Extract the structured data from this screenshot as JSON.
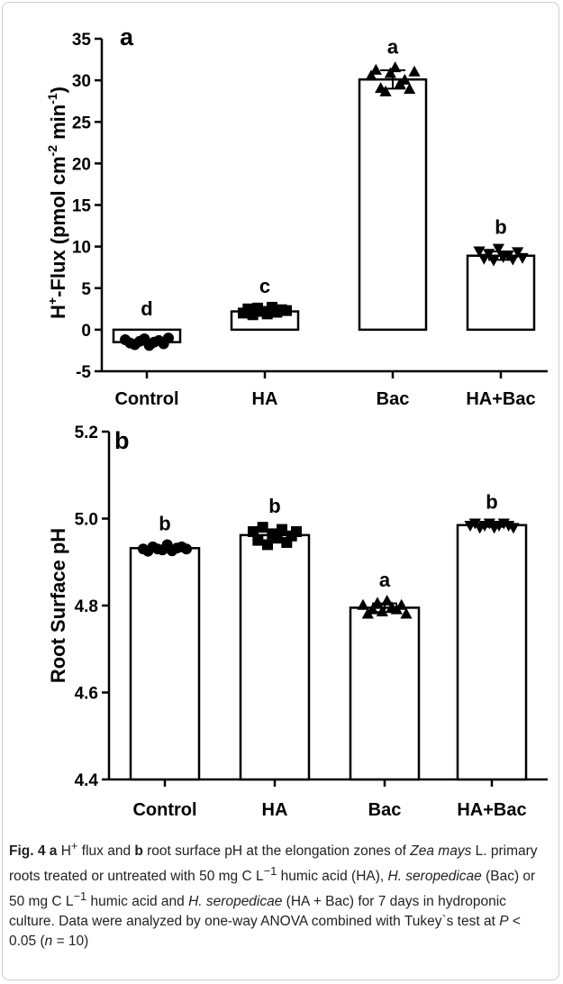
{
  "chart_data": [
    {
      "type": "bar",
      "panel": "a",
      "ylabel": [
        "H",
        "+",
        "-Flux  (pmol cm",
        "-2",
        " min",
        "-1",
        ")"
      ],
      "categories": [
        "Control",
        "HA",
        "Bac",
        "HA+Bac"
      ],
      "values": [
        -1.5,
        2.2,
        30.1,
        8.9
      ],
      "errors": [
        0.3,
        0.4,
        1.1,
        0.5
      ],
      "letters": [
        "d",
        "c",
        "a",
        "b"
      ],
      "markers": [
        "circle",
        "square",
        "triangle",
        "triangle-down"
      ],
      "points": [
        [
          -1.2,
          -1.6,
          -1.8,
          -1.4,
          -1.1,
          -1.9,
          -1.5,
          -1.3,
          -1.7,
          -1.0
        ],
        [
          2.0,
          2.5,
          1.8,
          2.6,
          2.2,
          1.9,
          2.7,
          2.1,
          2.4,
          2.3
        ],
        [
          30.5,
          31.2,
          29.0,
          28.6,
          30.8,
          31.5,
          29.5,
          30.0,
          28.9,
          31.0
        ],
        [
          9.5,
          8.6,
          9.2,
          8.4,
          9.8,
          8.8,
          9.0,
          8.5,
          9.4,
          8.7
        ]
      ],
      "color": "#ffffff",
      "ylim": [
        -5,
        35
      ],
      "yticks": [
        -5,
        0,
        5,
        10,
        15,
        20,
        25,
        30,
        35
      ]
    },
    {
      "type": "bar",
      "panel": "b",
      "ylabel": [
        "Root Surface pH"
      ],
      "categories": [
        "Control",
        "HA",
        "Bac",
        "HA+Bac"
      ],
      "values": [
        4.932,
        4.962,
        4.795,
        4.985
      ],
      "errors": [
        0.005,
        0.013,
        0.01,
        0.004
      ],
      "letters": [
        "b",
        "b",
        "a",
        "b"
      ],
      "markers": [
        "circle",
        "square",
        "triangle",
        "triangle-down"
      ],
      "points": [
        [
          4.93,
          4.925,
          4.935,
          4.93,
          4.928,
          4.94,
          4.926,
          4.932,
          4.935,
          4.93
        ],
        [
          4.97,
          4.95,
          4.98,
          4.94,
          4.965,
          4.955,
          4.975,
          4.945,
          4.96,
          4.97
        ],
        [
          4.8,
          4.78,
          4.79,
          4.805,
          4.785,
          4.81,
          4.795,
          4.79,
          4.8,
          4.78
        ],
        [
          4.985,
          4.99,
          4.98,
          4.985,
          4.99,
          4.98,
          4.985,
          4.99,
          4.985,
          4.98
        ]
      ],
      "color": "#ffffff",
      "ylim": [
        4.4,
        5.2
      ],
      "yticks": [
        4.4,
        4.6,
        4.8,
        {
          "value": 5,
          "label": "5.0"
        },
        {
          "value": 5.2,
          "label": "5.2"
        }
      ]
    }
  ],
  "caption": [
    "Fig. 4",
    " ",
    "a",
    " H",
    "+",
    " flux and ",
    "b",
    " root surface pH at the elongation zones of ",
    "Zea mays",
    " L. primary roots treated or untreated with 50 mg C L",
    "−1",
    " humic acid (HA), ",
    "H. seropedicae",
    " (Bac) or 50 mg C L",
    "−1",
    " humic acid and ",
    "H. seropedicae",
    " (HA + Bac) for 7 days in hydroponic culture. Data were analyzed by one-way ANOVA combined with Tukey`s test at ",
    "P",
    " < 0.05 (",
    "n",
    " = 10)"
  ]
}
